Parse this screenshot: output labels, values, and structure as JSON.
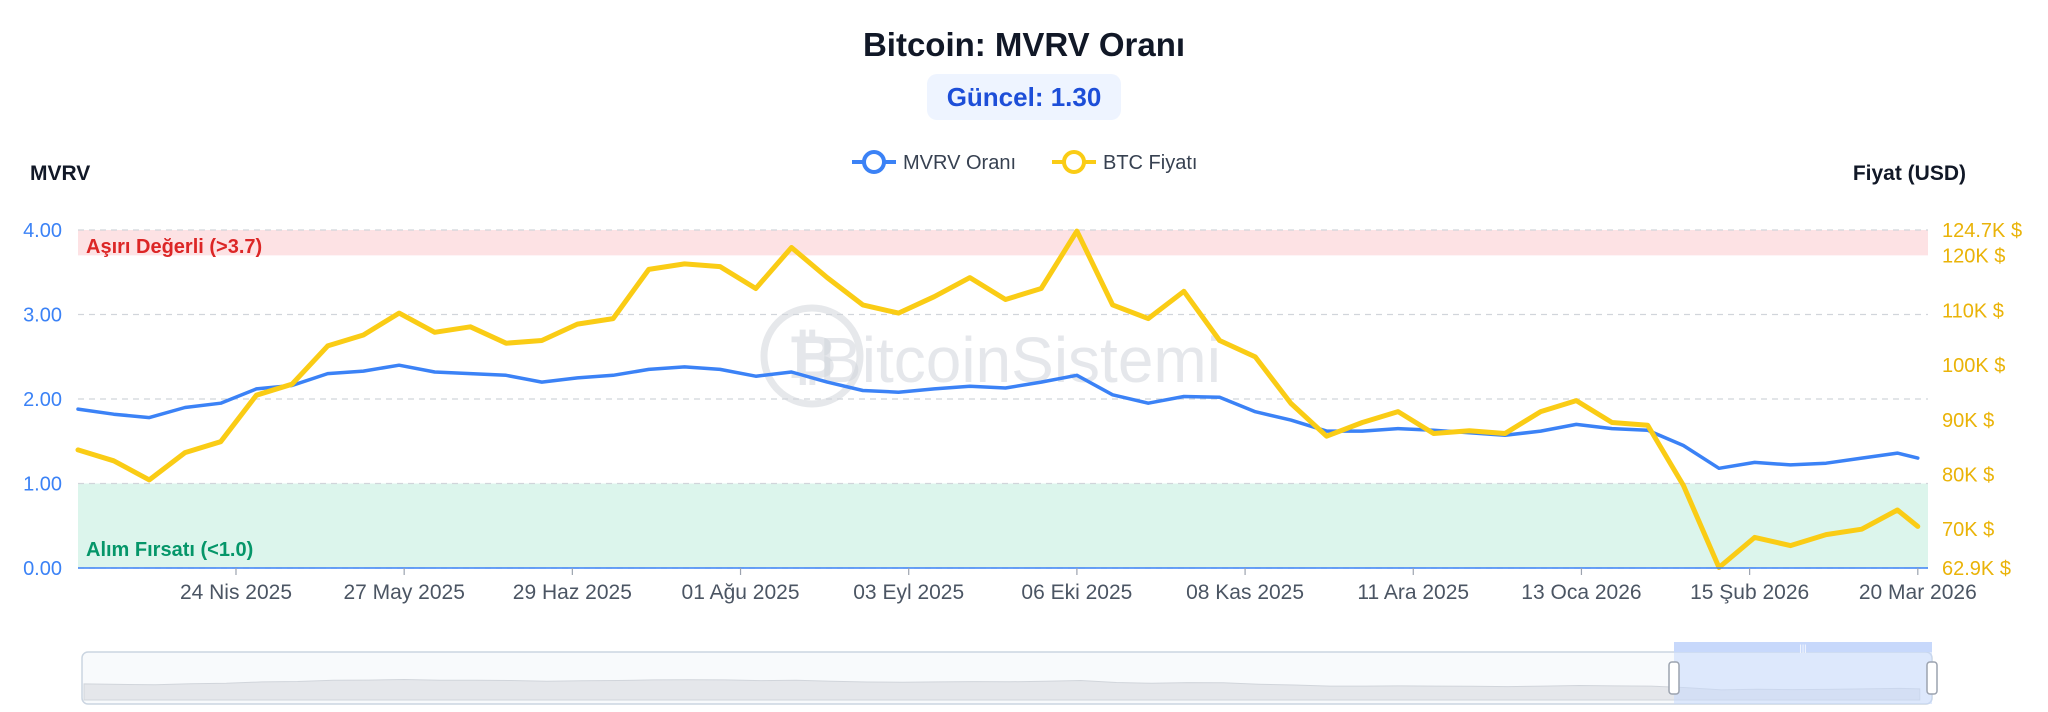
{
  "header": {
    "title": "Bitcoin: MVRV Oranı",
    "current_badge": "Güncel: 1.30"
  },
  "watermark": "BitcoinSistemi",
  "colors": {
    "mvrv": "#3b82f6",
    "btc": "#facc15",
    "overvalued_zone": "#fde2e4",
    "buy_zone": "#dcf5ec"
  },
  "chart_data": {
    "type": "line",
    "title": "Bitcoin: MVRV Oranı",
    "y_left_label": "MVRV",
    "y_right_label": "Fiyat (USD)",
    "y_left_range": [
      0,
      4
    ],
    "y_left_ticks": [
      "0.00",
      "1.00",
      "2.00",
      "3.00",
      "4.00"
    ],
    "y_right_range": [
      62900,
      124700
    ],
    "y_right_ticks": [
      {
        "value": 62900,
        "label": "62.9K $"
      },
      {
        "value": 70000,
        "label": "70K $"
      },
      {
        "value": 80000,
        "label": "80K $"
      },
      {
        "value": 90000,
        "label": "90K $"
      },
      {
        "value": 100000,
        "label": "100K $"
      },
      {
        "value": 110000,
        "label": "110K $"
      },
      {
        "value": 120000,
        "label": "120K $"
      },
      {
        "value": 124700,
        "label": "124.7K $"
      }
    ],
    "x_range": [
      "2025-03-24",
      "2026-03-22"
    ],
    "x_ticks": [
      {
        "date": "2025-04-24",
        "label": "24 Nis 2025"
      },
      {
        "date": "2025-05-27",
        "label": "27 May 2025"
      },
      {
        "date": "2025-06-29",
        "label": "29 Haz 2025"
      },
      {
        "date": "2025-08-01",
        "label": "01 Ağu 2025"
      },
      {
        "date": "2025-09-03",
        "label": "03 Eyl 2025"
      },
      {
        "date": "2025-10-06",
        "label": "06 Eki 2025"
      },
      {
        "date": "2025-11-08",
        "label": "08 Kas 2025"
      },
      {
        "date": "2025-12-11",
        "label": "11 Ara 2025"
      },
      {
        "date": "2026-01-13",
        "label": "13 Oca 2026"
      },
      {
        "date": "2026-02-15",
        "label": "15 Şub 2026"
      },
      {
        "date": "2026-03-20",
        "label": "20 Mar 2026"
      }
    ],
    "zones": [
      {
        "label": "Aşırı Değerli (>3.7)",
        "from": 3.7,
        "to": 4.0
      },
      {
        "label": "Alım Fırsatı (<1.0)",
        "from": 0.0,
        "to": 1.0
      }
    ],
    "legend_position": "top-center",
    "grid": true,
    "series": [
      {
        "name": "MVRV Oranı",
        "axis": "left",
        "points": [
          [
            "2025-03-24",
            1.88
          ],
          [
            "2025-03-31",
            1.82
          ],
          [
            "2025-04-07",
            1.78
          ],
          [
            "2025-04-14",
            1.9
          ],
          [
            "2025-04-21",
            1.95
          ],
          [
            "2025-04-28",
            2.12
          ],
          [
            "2025-05-05",
            2.16
          ],
          [
            "2025-05-12",
            2.3
          ],
          [
            "2025-05-19",
            2.33
          ],
          [
            "2025-05-26",
            2.4
          ],
          [
            "2025-06-02",
            2.32
          ],
          [
            "2025-06-09",
            2.3
          ],
          [
            "2025-06-16",
            2.28
          ],
          [
            "2025-06-23",
            2.2
          ],
          [
            "2025-06-30",
            2.25
          ],
          [
            "2025-07-07",
            2.28
          ],
          [
            "2025-07-14",
            2.35
          ],
          [
            "2025-07-21",
            2.38
          ],
          [
            "2025-07-28",
            2.35
          ],
          [
            "2025-08-04",
            2.27
          ],
          [
            "2025-08-11",
            2.32
          ],
          [
            "2025-08-18",
            2.2
          ],
          [
            "2025-08-25",
            2.1
          ],
          [
            "2025-09-01",
            2.08
          ],
          [
            "2025-09-08",
            2.12
          ],
          [
            "2025-09-15",
            2.15
          ],
          [
            "2025-09-22",
            2.13
          ],
          [
            "2025-09-29",
            2.2
          ],
          [
            "2025-10-06",
            2.28
          ],
          [
            "2025-10-13",
            2.05
          ],
          [
            "2025-10-20",
            1.95
          ],
          [
            "2025-10-27",
            2.03
          ],
          [
            "2025-11-03",
            2.02
          ],
          [
            "2025-11-10",
            1.85
          ],
          [
            "2025-11-17",
            1.75
          ],
          [
            "2025-11-24",
            1.62
          ],
          [
            "2025-12-01",
            1.62
          ],
          [
            "2025-12-08",
            1.65
          ],
          [
            "2025-12-15",
            1.63
          ],
          [
            "2025-12-22",
            1.6
          ],
          [
            "2025-12-29",
            1.57
          ],
          [
            "2026-01-05",
            1.62
          ],
          [
            "2026-01-12",
            1.7
          ],
          [
            "2026-01-19",
            1.65
          ],
          [
            "2026-01-26",
            1.63
          ],
          [
            "2026-02-02",
            1.45
          ],
          [
            "2026-02-09",
            1.18
          ],
          [
            "2026-02-16",
            1.25
          ],
          [
            "2026-02-23",
            1.22
          ],
          [
            "2026-03-02",
            1.24
          ],
          [
            "2026-03-09",
            1.3
          ],
          [
            "2026-03-16",
            1.36
          ],
          [
            "2026-03-20",
            1.3
          ]
        ]
      },
      {
        "name": "BTC Fiyatı",
        "axis": "right",
        "points": [
          [
            "2025-03-24",
            84500
          ],
          [
            "2025-03-31",
            82500
          ],
          [
            "2025-04-07",
            79000
          ],
          [
            "2025-04-14",
            84000
          ],
          [
            "2025-04-21",
            86000
          ],
          [
            "2025-04-28",
            94500
          ],
          [
            "2025-05-05",
            96500
          ],
          [
            "2025-05-12",
            103500
          ],
          [
            "2025-05-19",
            105500
          ],
          [
            "2025-05-26",
            109500
          ],
          [
            "2025-06-02",
            106000
          ],
          [
            "2025-06-09",
            107000
          ],
          [
            "2025-06-16",
            104000
          ],
          [
            "2025-06-23",
            104500
          ],
          [
            "2025-06-30",
            107500
          ],
          [
            "2025-07-07",
            108500
          ],
          [
            "2025-07-14",
            117500
          ],
          [
            "2025-07-21",
            118500
          ],
          [
            "2025-07-28",
            118000
          ],
          [
            "2025-08-04",
            114000
          ],
          [
            "2025-08-11",
            121500
          ],
          [
            "2025-08-18",
            116000
          ],
          [
            "2025-08-25",
            111000
          ],
          [
            "2025-09-01",
            109500
          ],
          [
            "2025-09-08",
            112500
          ],
          [
            "2025-09-15",
            116000
          ],
          [
            "2025-09-22",
            112000
          ],
          [
            "2025-09-29",
            114000
          ],
          [
            "2025-10-06",
            124500
          ],
          [
            "2025-10-13",
            111000
          ],
          [
            "2025-10-20",
            108500
          ],
          [
            "2025-10-27",
            113500
          ],
          [
            "2025-11-03",
            104500
          ],
          [
            "2025-11-10",
            101500
          ],
          [
            "2025-11-17",
            93000
          ],
          [
            "2025-11-24",
            87000
          ],
          [
            "2025-12-01",
            89500
          ],
          [
            "2025-12-08",
            91500
          ],
          [
            "2025-12-15",
            87500
          ],
          [
            "2025-12-22",
            88000
          ],
          [
            "2025-12-29",
            87500
          ],
          [
            "2026-01-05",
            91500
          ],
          [
            "2026-01-12",
            93500
          ],
          [
            "2026-01-19",
            89500
          ],
          [
            "2026-01-26",
            89000
          ],
          [
            "2026-02-02",
            78000
          ],
          [
            "2026-02-09",
            63000
          ],
          [
            "2026-02-16",
            68500
          ],
          [
            "2026-02-23",
            67000
          ],
          [
            "2026-03-02",
            69000
          ],
          [
            "2026-03-09",
            70000
          ],
          [
            "2026-03-16",
            73500
          ],
          [
            "2026-03-20",
            70500
          ]
        ]
      }
    ]
  }
}
